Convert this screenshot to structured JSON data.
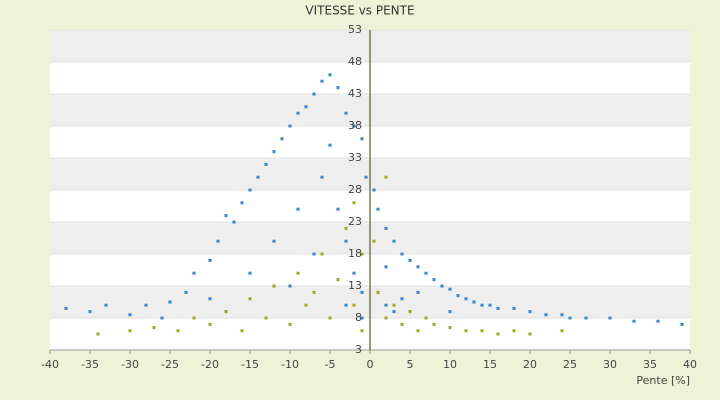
{
  "chart_data": {
    "type": "scatter",
    "title": "VITESSE vs PENTE",
    "x_label": "Pente [%]",
    "xlim": [
      -40,
      40
    ],
    "xticks": [
      -40,
      -35,
      -30,
      -25,
      -20,
      -15,
      -10,
      -5,
      0,
      5,
      10,
      15,
      20,
      25,
      30,
      35,
      40
    ],
    "ylim": [
      3,
      53
    ],
    "yticks": [
      3,
      8,
      13,
      18,
      23,
      28,
      33,
      38,
      43,
      48,
      53
    ],
    "grid": true,
    "series": [
      {
        "color": "#2e86d6",
        "x": [
          -38,
          -35,
          -33,
          -30,
          -28,
          -25,
          -23,
          -22,
          -20,
          -19,
          -18,
          -17,
          -16,
          -15,
          -14,
          -13,
          -12,
          -11,
          -10,
          -9,
          -8,
          -7,
          -6,
          -6,
          -5,
          -5,
          -4,
          -4,
          -3,
          -3,
          -2,
          -2,
          -1,
          -1,
          -0.5,
          0.5,
          1,
          1,
          2,
          2,
          3,
          3,
          4,
          4,
          5,
          5,
          6,
          7,
          8,
          9,
          10,
          11,
          12,
          13,
          14,
          15,
          16,
          18,
          20,
          22,
          24,
          25,
          27,
          30,
          33,
          36,
          39,
          -12,
          -9,
          -7,
          -15,
          -10,
          -20,
          -3,
          -1,
          2,
          6,
          10,
          -26,
          -18
        ],
        "values": [
          9.5,
          9,
          10,
          8.5,
          10,
          10.5,
          12,
          15,
          17,
          20,
          24,
          23,
          26,
          28,
          30,
          32,
          34,
          36,
          38,
          40,
          41,
          43,
          45,
          30,
          46,
          35,
          44,
          25,
          40,
          20,
          38,
          15,
          36,
          12,
          30,
          28,
          25,
          12,
          22,
          10,
          20,
          9,
          18,
          11,
          17,
          9,
          16,
          15,
          14,
          13,
          12.5,
          11.5,
          11,
          10.5,
          10,
          10,
          9.5,
          9.5,
          9,
          8.5,
          8.5,
          8,
          8,
          8,
          7.5,
          7.5,
          7,
          20,
          25,
          18,
          15,
          13,
          11,
          10,
          8,
          16,
          12,
          9,
          8,
          9
        ]
      },
      {
        "color": "#a6a41a",
        "x": [
          -34,
          -30,
          -27,
          -24,
          -22,
          -20,
          -18,
          -16,
          -15,
          -13,
          -12,
          -10,
          -9,
          -8,
          -7,
          -6,
          -5,
          -4,
          -3,
          -2,
          -2,
          -1,
          -1,
          0.5,
          1,
          2,
          2,
          3,
          4,
          5,
          6,
          7,
          8,
          10,
          12,
          14,
          16,
          18,
          20,
          24
        ],
        "values": [
          5.5,
          6,
          6.5,
          6,
          8,
          7,
          9,
          6,
          11,
          8,
          13,
          7,
          15,
          10,
          12,
          18,
          8,
          14,
          22,
          10,
          26,
          18,
          6,
          20,
          12,
          8,
          30,
          10,
          7,
          9,
          6,
          8,
          7,
          6.5,
          6,
          6,
          5.5,
          6,
          5.5,
          6
        ]
      }
    ]
  }
}
